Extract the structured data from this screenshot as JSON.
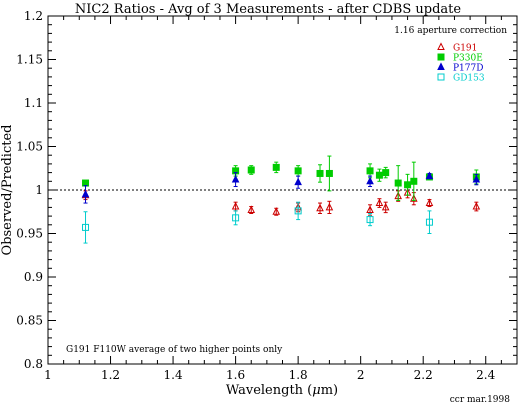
{
  "chart_data": {
    "type": "scatter",
    "title": "NIC2 Ratios - Avg of 3 Measurements - after CDBS update",
    "xlabel_prefix": "Wavelength (",
    "xlabel_mu": "μ",
    "xlabel_suffix": "m)",
    "ylabel": "Observed/Predicted",
    "xlim": [
      1.0,
      2.5
    ],
    "ylim": [
      0.8,
      1.2
    ],
    "x_ticks": [
      "1",
      "1.2",
      "1.4",
      "1.6",
      "1.8",
      "2",
      "2.2",
      "2.4"
    ],
    "x_tick_values": [
      1.0,
      1.2,
      1.4,
      1.6,
      1.8,
      2.0,
      2.2,
      2.4
    ],
    "y_ticks": [
      "0.8",
      "0.85",
      "0.9",
      "0.95",
      "1",
      "1.05",
      "1.1",
      "1.15",
      "1.2"
    ],
    "y_tick_values": [
      0.8,
      0.85,
      0.9,
      0.95,
      1.0,
      1.05,
      1.1,
      1.15,
      1.2
    ],
    "reference_line": 1.0,
    "annotations": {
      "top_right": "1.16 aperture correction",
      "bottom_left": "G191 F110W average of two higher points only",
      "footer": "ccr mar.1998"
    },
    "legend_position": "top-right",
    "series": [
      {
        "name": "G191",
        "marker": "triangle-open",
        "color": "#cc0000",
        "points": [
          {
            "x": 1.12,
            "y": 0.994,
            "err": 0.005
          },
          {
            "x": 1.6,
            "y": 0.981,
            "err": 0.005
          },
          {
            "x": 1.65,
            "y": 0.977,
            "err": 0.004
          },
          {
            "x": 1.73,
            "y": 0.975,
            "err": 0.004
          },
          {
            "x": 1.8,
            "y": 0.98,
            "err": 0.005
          },
          {
            "x": 1.87,
            "y": 0.979,
            "err": 0.006
          },
          {
            "x": 1.9,
            "y": 0.98,
            "err": 0.007
          },
          {
            "x": 2.03,
            "y": 0.977,
            "err": 0.006
          },
          {
            "x": 2.06,
            "y": 0.985,
            "err": 0.005
          },
          {
            "x": 2.08,
            "y": 0.98,
            "err": 0.006
          },
          {
            "x": 2.12,
            "y": 0.993,
            "err": 0.006
          },
          {
            "x": 2.15,
            "y": 0.997,
            "err": 0.006
          },
          {
            "x": 2.17,
            "y": 0.99,
            "err": 0.007
          },
          {
            "x": 2.22,
            "y": 0.985,
            "err": 0.004
          },
          {
            "x": 2.37,
            "y": 0.981,
            "err": 0.005
          }
        ]
      },
      {
        "name": "P330E",
        "marker": "square-filled",
        "color": "#00cc00",
        "points": [
          {
            "x": 1.12,
            "y": 1.008,
            "err": 0.003
          },
          {
            "x": 1.6,
            "y": 1.022,
            "err": 0.006
          },
          {
            "x": 1.65,
            "y": 1.023,
            "err": 0.005
          },
          {
            "x": 1.73,
            "y": 1.026,
            "err": 0.006
          },
          {
            "x": 1.8,
            "y": 1.022,
            "err": 0.006
          },
          {
            "x": 1.87,
            "y": 1.019,
            "err": 0.01
          },
          {
            "x": 1.9,
            "y": 1.019,
            "err": 0.02
          },
          {
            "x": 2.03,
            "y": 1.022,
            "err": 0.008
          },
          {
            "x": 2.06,
            "y": 1.017,
            "err": 0.007
          },
          {
            "x": 2.08,
            "y": 1.02,
            "err": 0.006
          },
          {
            "x": 2.12,
            "y": 1.008,
            "err": 0.02
          },
          {
            "x": 2.15,
            "y": 1.006,
            "err": 0.012
          },
          {
            "x": 2.17,
            "y": 1.01,
            "err": 0.022
          },
          {
            "x": 2.22,
            "y": 1.015,
            "err": 0.003
          },
          {
            "x": 2.37,
            "y": 1.015,
            "err": 0.008
          }
        ]
      },
      {
        "name": "P177D",
        "marker": "triangle-filled",
        "color": "#0000cc",
        "points": [
          {
            "x": 1.12,
            "y": 0.995,
            "err": 0.01
          },
          {
            "x": 1.6,
            "y": 1.012,
            "err": 0.008
          },
          {
            "x": 1.8,
            "y": 1.009,
            "err": 0.007
          },
          {
            "x": 2.03,
            "y": 1.01,
            "err": 0.006
          },
          {
            "x": 2.22,
            "y": 1.016,
            "err": 0.003
          },
          {
            "x": 2.37,
            "y": 1.012,
            "err": 0.006
          }
        ]
      },
      {
        "name": "GD153",
        "marker": "square-open",
        "color": "#00cccc",
        "points": [
          {
            "x": 1.12,
            "y": 0.957,
            "err": 0.018
          },
          {
            "x": 1.6,
            "y": 0.968,
            "err": 0.008
          },
          {
            "x": 1.8,
            "y": 0.976,
            "err": 0.01
          },
          {
            "x": 2.03,
            "y": 0.966,
            "err": 0.007
          },
          {
            "x": 2.22,
            "y": 0.963,
            "err": 0.013
          }
        ]
      }
    ]
  }
}
